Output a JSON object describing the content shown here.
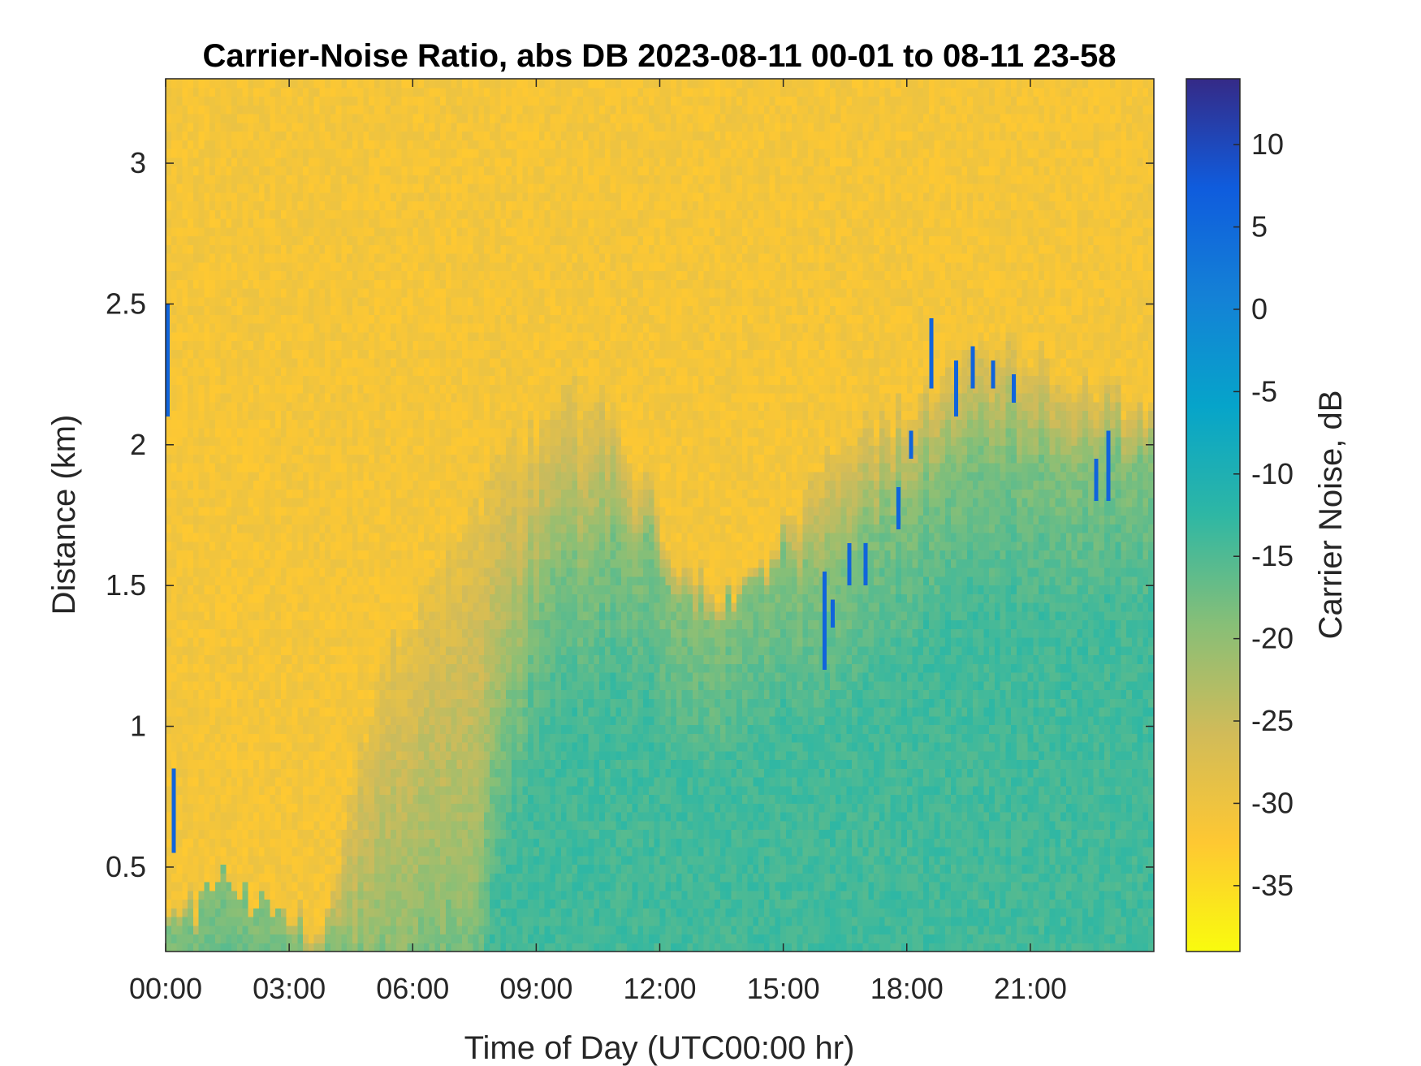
{
  "chart_data": {
    "type": "heatmap",
    "title": "Carrier-Noise Ratio, abs DB 2023-08-11 00-01 to 08-11 23-58",
    "xlabel": "Time of Day (UTC00:00 hr)",
    "ylabel": "Distance (km)",
    "xlim_hours": [
      0,
      24
    ],
    "ylim_km": [
      0.2,
      3.3
    ],
    "x_ticks": [
      {
        "hour": 0,
        "label": "00:00"
      },
      {
        "hour": 3,
        "label": "03:00"
      },
      {
        "hour": 6,
        "label": "06:00"
      },
      {
        "hour": 9,
        "label": "09:00"
      },
      {
        "hour": 12,
        "label": "12:00"
      },
      {
        "hour": 15,
        "label": "15:00"
      },
      {
        "hour": 18,
        "label": "18:00"
      },
      {
        "hour": 21,
        "label": "21:00"
      }
    ],
    "y_ticks": [
      {
        "km": 0.5,
        "label": "0.5"
      },
      {
        "km": 1,
        "label": "1"
      },
      {
        "km": 1.5,
        "label": "1.5"
      },
      {
        "km": 2,
        "label": "2"
      },
      {
        "km": 2.5,
        "label": "2.5"
      },
      {
        "km": 3,
        "label": "3"
      }
    ],
    "colorbar": {
      "label": "Carrier Noise, dB",
      "range_db": [
        -39,
        14
      ],
      "ticks": [
        {
          "db": 10,
          "label": "10"
        },
        {
          "db": 5,
          "label": "5"
        },
        {
          "db": 0,
          "label": "0"
        },
        {
          "db": -5,
          "label": "-5"
        },
        {
          "db": -10,
          "label": "-10"
        },
        {
          "db": -15,
          "label": "-15"
        },
        {
          "db": -20,
          "label": "-20"
        },
        {
          "db": -25,
          "label": "-25"
        },
        {
          "db": -30,
          "label": "-30"
        },
        {
          "db": -35,
          "label": "-35"
        }
      ],
      "colormap": "parula",
      "colormap_stops": [
        "#352a87",
        "#0f5cdd",
        "#1481d6",
        "#06a4ca",
        "#2eb7a4",
        "#87bf77",
        "#d1bb59",
        "#fec832",
        "#f9fb0e"
      ]
    },
    "signal_top_km": {
      "hours": [
        0,
        0.3,
        0.6,
        1.0,
        1.3,
        1.6,
        2.0,
        2.5,
        3.0,
        3.2,
        4.0,
        4.8,
        5.5,
        6.5,
        7.5,
        8.0,
        9.0,
        10.0,
        11.0,
        12.0,
        13.0,
        14.0,
        15.0,
        15.8,
        16.5,
        17.5,
        18.5,
        19.5,
        20.5,
        21.5,
        22.5,
        24.0
      ],
      "km": [
        0.25,
        0.3,
        0.28,
        0.4,
        0.5,
        0.45,
        0.4,
        0.35,
        0.25,
        0.2,
        0.2,
        0.2,
        0.25,
        0.3,
        0.35,
        0.9,
        1.5,
        1.6,
        1.7,
        1.6,
        1.4,
        1.5,
        1.6,
        1.5,
        1.6,
        1.8,
        1.9,
        1.95,
        2.0,
        2.0,
        1.95,
        1.95
      ]
    },
    "aerosol_top_km": {
      "hours": [
        0,
        1,
        2,
        3,
        4,
        4.8,
        5.5,
        6.5,
        7.5,
        8.5,
        9.5,
        10.5,
        11.5,
        12.5,
        13.5,
        14.5,
        15.5,
        16.5,
        17.5,
        18.5,
        19.5,
        20.5,
        21.5,
        22.5,
        24.0
      ],
      "km": [
        0.3,
        0.4,
        0.35,
        0.3,
        0.3,
        1.0,
        1.3,
        1.5,
        1.8,
        2.0,
        2.1,
        2.2,
        1.9,
        1.6,
        1.5,
        1.6,
        1.8,
        2.0,
        2.1,
        2.2,
        2.3,
        2.35,
        2.3,
        2.2,
        2.1
      ]
    },
    "strong_return_columns": [
      {
        "hour": 0.05,
        "km_from": 2.1,
        "km_to": 2.5
      },
      {
        "hour": 0.2,
        "km_from": 0.55,
        "km_to": 0.85
      },
      {
        "hour": 16.0,
        "km_from": 1.2,
        "km_to": 1.55
      },
      {
        "hour": 16.2,
        "km_from": 1.35,
        "km_to": 1.45
      },
      {
        "hour": 16.6,
        "km_from": 1.5,
        "km_to": 1.65
      },
      {
        "hour": 17.0,
        "km_from": 1.5,
        "km_to": 1.65
      },
      {
        "hour": 17.8,
        "km_from": 1.7,
        "km_to": 1.85
      },
      {
        "hour": 18.1,
        "km_from": 1.95,
        "km_to": 2.05
      },
      {
        "hour": 18.6,
        "km_from": 2.2,
        "km_to": 2.45
      },
      {
        "hour": 19.2,
        "km_from": 2.1,
        "km_to": 2.3
      },
      {
        "hour": 19.6,
        "km_from": 2.2,
        "km_to": 2.35
      },
      {
        "hour": 20.1,
        "km_from": 2.2,
        "km_to": 2.3
      },
      {
        "hour": 20.6,
        "km_from": 2.15,
        "km_to": 2.25
      },
      {
        "hour": 22.6,
        "km_from": 1.8,
        "km_to": 1.95
      },
      {
        "hour": 22.9,
        "km_from": 1.8,
        "km_to": 2.05
      }
    ]
  }
}
